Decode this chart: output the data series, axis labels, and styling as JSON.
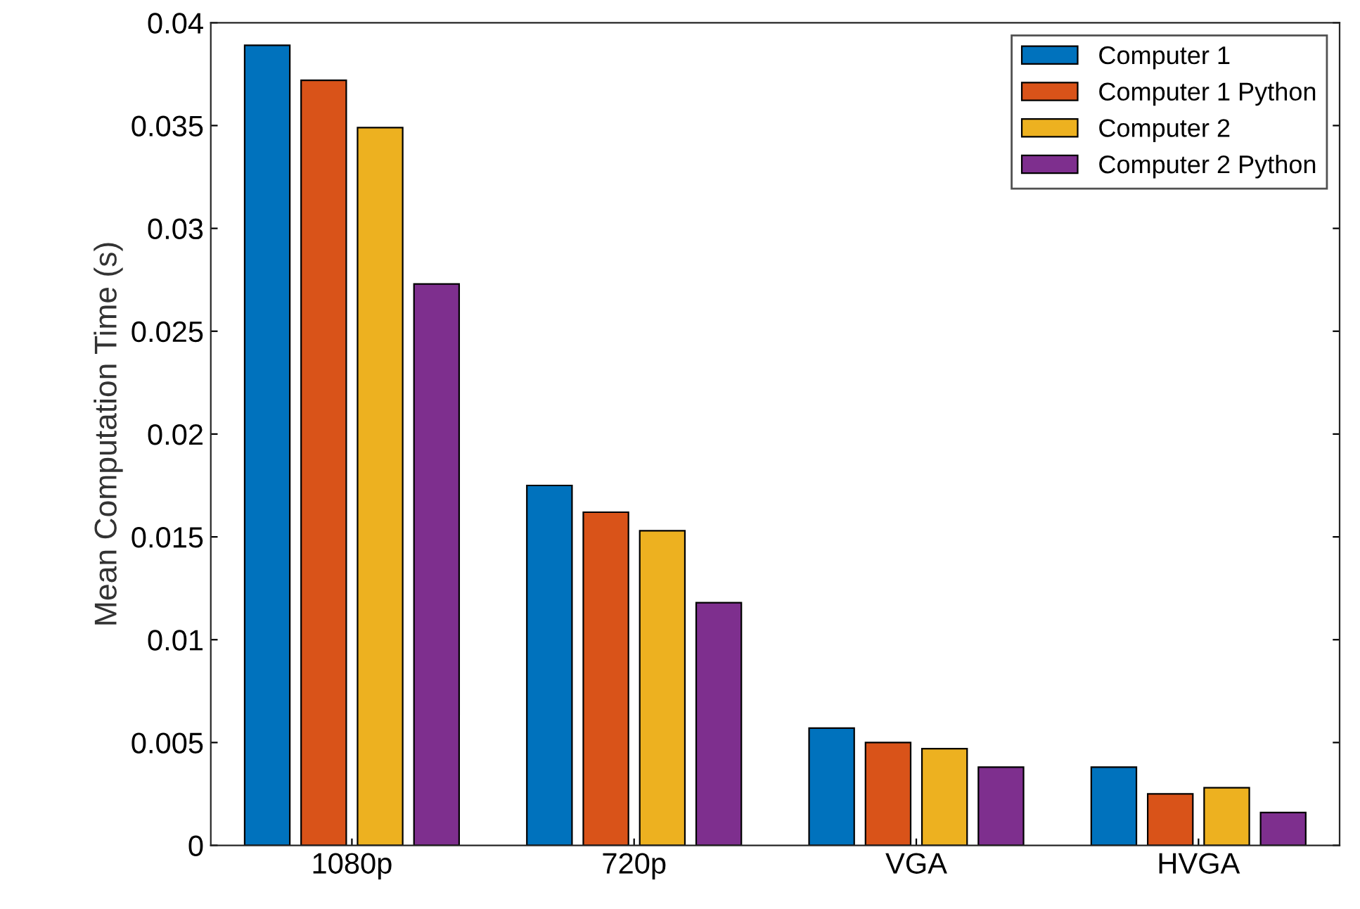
{
  "chart_data": {
    "type": "bar",
    "ylabel": "Mean Computation Time (s)",
    "categories": [
      "1080p",
      "720p",
      "VGA",
      "HVGA"
    ],
    "series": [
      {
        "name": "Computer 1",
        "color": "#0072bd",
        "values": [
          0.0389,
          0.0175,
          0.0057,
          0.0038
        ]
      },
      {
        "name": "Computer 1 Python",
        "color": "#d95319",
        "values": [
          0.0372,
          0.0162,
          0.005,
          0.0025
        ]
      },
      {
        "name": "Computer 2",
        "color": "#edb120",
        "values": [
          0.0349,
          0.0153,
          0.0047,
          0.0028
        ]
      },
      {
        "name": "Computer 2 Python",
        "color": "#7e2f8e",
        "values": [
          0.0273,
          0.0118,
          0.0038,
          0.0016
        ]
      }
    ],
    "ylim": [
      0,
      0.04
    ],
    "yticks": [
      0,
      0.005,
      0.01,
      0.015,
      0.02,
      0.025,
      0.03,
      0.035,
      0.04
    ],
    "legend": "top right",
    "grid": false
  }
}
